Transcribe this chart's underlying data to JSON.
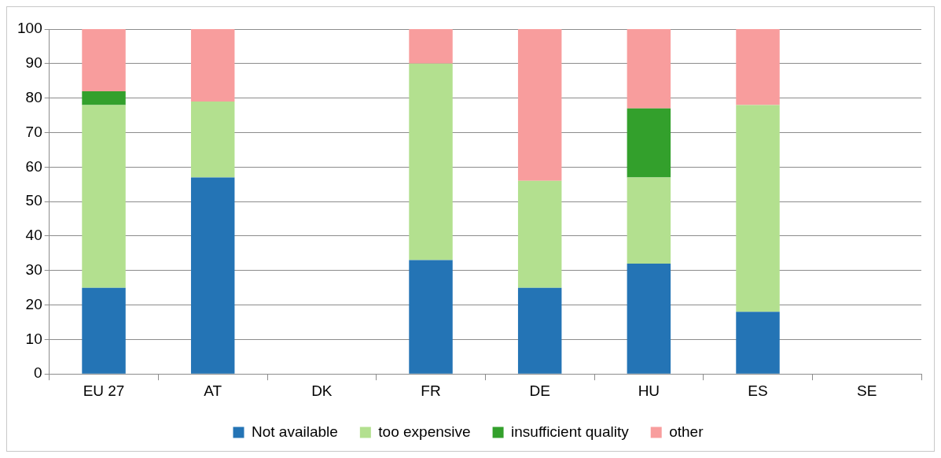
{
  "chart_data": {
    "type": "bar",
    "stacked": true,
    "categories": [
      "EU 27",
      "AT",
      "DK",
      "FR",
      "DE",
      "HU",
      "ES",
      "SE"
    ],
    "series": [
      {
        "name": "Not available",
        "color": "#2474b5",
        "values": [
          25,
          57,
          null,
          33,
          25,
          32,
          18,
          null
        ]
      },
      {
        "name": "too expensive",
        "color": "#b3e08f",
        "values": [
          53,
          22,
          null,
          57,
          31,
          25,
          60,
          null
        ]
      },
      {
        "name": "insufficient quality",
        "color": "#33a02c",
        "values": [
          4,
          0,
          null,
          0,
          0,
          20,
          0,
          null
        ]
      },
      {
        "name": "other",
        "color": "#f89d9d",
        "values": [
          18,
          21,
          null,
          10,
          44,
          23,
          22,
          null
        ]
      }
    ],
    "ylim": [
      0,
      100
    ],
    "yticks": [
      0,
      10,
      20,
      30,
      40,
      50,
      60,
      70,
      80,
      90,
      100
    ],
    "grid": "y",
    "legend": "bottom"
  }
}
